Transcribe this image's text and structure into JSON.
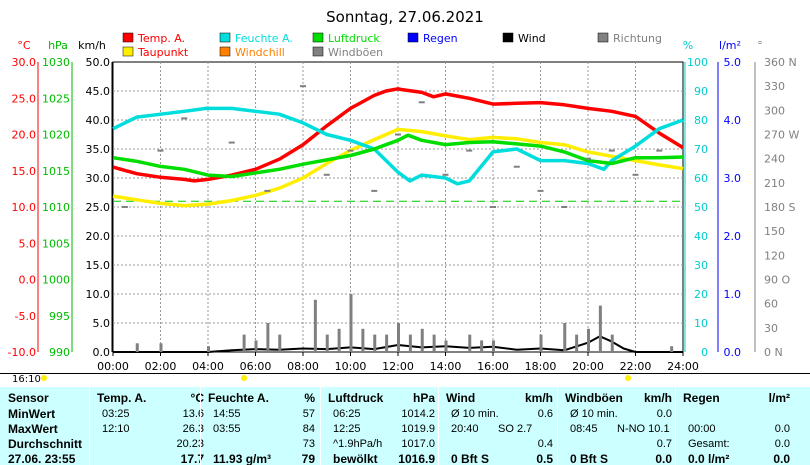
{
  "title": "Sonntag, 27.06.2021",
  "legend": [
    {
      "label": "Temp. A.",
      "color": "#ff0000"
    },
    {
      "label": "Feuchte A.",
      "color": "#00dddd"
    },
    {
      "label": "Luftdruck",
      "color": "#00dd00"
    },
    {
      "label": "Regen",
      "color": "#0000ff"
    },
    {
      "label": "Wind",
      "color": "#000000"
    },
    {
      "label": "Richtung",
      "color": "#808080"
    },
    {
      "label": "Taupunkt",
      "color": "#ffee00"
    },
    {
      "label": "Windchill",
      "color": "#ff8000"
    },
    {
      "label": "Windböen",
      "color": "#808080"
    }
  ],
  "axes": {
    "temp": {
      "unit": "°C",
      "ticks": [
        "30.0",
        "25.0",
        "20.0",
        "15.0",
        "10.0",
        "5.0",
        "0.0",
        "-5.0",
        "-10.0"
      ]
    },
    "press": {
      "unit": "hPa",
      "ticks": [
        "1030",
        "1025",
        "1020",
        "1015",
        "1010",
        "1005",
        "1000",
        "995",
        "990"
      ]
    },
    "wind": {
      "unit": "km/h",
      "ticks": [
        "50.0",
        "45.0",
        "40.0",
        "35.0",
        "30.0",
        "25.0",
        "20.0",
        "15.0",
        "10.0",
        "5.0",
        "0.0"
      ]
    },
    "hum": {
      "unit": "%",
      "ticks": [
        "100",
        "90",
        "80",
        "70",
        "60",
        "50",
        "40",
        "30",
        "20",
        "10",
        "0"
      ]
    },
    "rain": {
      "unit": "l/m²",
      "ticks": [
        "5.0",
        "4.0",
        "3.0",
        "2.0",
        "1.0",
        "0.0"
      ]
    },
    "dir": {
      "unit": "°",
      "ticks": [
        "360 N",
        "330",
        "300",
        "270 W",
        "240",
        "210",
        "180 S",
        "150",
        "120",
        "90 O",
        "60",
        "30",
        "0 N"
      ]
    },
    "x": [
      "00:00",
      "02:00",
      "04:00",
      "06:00",
      "08:00",
      "10:00",
      "12:00",
      "14:00",
      "16:00",
      "18:00",
      "20:00",
      "22:00",
      "24:00"
    ]
  },
  "sun": {
    "rise": "16:10"
  },
  "chart_data": {
    "type": "line",
    "title": "Sonntag, 27.06.2021",
    "x_unit": "hours",
    "series": [
      {
        "name": "Temp. A.",
        "axis": "temp",
        "color": "#ff0000",
        "x": [
          0,
          1,
          2,
          3,
          3.42,
          4,
          5,
          6,
          7,
          8,
          9,
          10,
          11,
          11.5,
          12,
          12.17,
          13,
          13.5,
          14,
          14.5,
          15,
          16,
          17,
          18,
          19,
          20,
          21,
          22,
          23,
          24
        ],
        "y": [
          15.5,
          14.6,
          14.1,
          13.8,
          13.6,
          13.8,
          14.4,
          15.2,
          16.6,
          18.6,
          21.2,
          23.6,
          25.4,
          26.0,
          26.3,
          26.2,
          25.8,
          25.2,
          25.6,
          25.3,
          25.0,
          24.2,
          24.3,
          24.4,
          24.1,
          23.6,
          23.2,
          22.5,
          20.2,
          18.2
        ]
      },
      {
        "name": "Taupunkt",
        "axis": "temp",
        "color": "#ffee00",
        "x": [
          0,
          1,
          2,
          3,
          4,
          5,
          6,
          7,
          8,
          9,
          10,
          11,
          12,
          13,
          14,
          15,
          16,
          17,
          18,
          19,
          20,
          21,
          22,
          23,
          24
        ],
        "y": [
          11.5,
          11.0,
          10.5,
          10.2,
          10.4,
          10.9,
          11.6,
          12.6,
          14.0,
          16.0,
          17.8,
          19.3,
          20.7,
          20.4,
          19.8,
          19.3,
          19.6,
          19.4,
          18.9,
          18.6,
          17.6,
          17.0,
          16.4,
          15.8,
          15.3
        ]
      },
      {
        "name": "Feuchte A.",
        "axis": "hum",
        "color": "#00dddd",
        "x": [
          0,
          1,
          2,
          3,
          3.92,
          4,
          5,
          6,
          7,
          8,
          9,
          10,
          11,
          11.5,
          12,
          12.5,
          13,
          14,
          14.5,
          15,
          16,
          17,
          18,
          19,
          20,
          20.67,
          21,
          22,
          23,
          24
        ],
        "y": [
          77,
          81,
          82,
          83,
          84,
          84,
          84,
          83,
          82,
          79,
          75,
          73,
          70,
          66,
          62,
          59,
          61,
          60,
          58,
          59,
          69,
          70,
          66,
          66,
          65,
          63,
          66,
          71,
          77,
          80
        ]
      },
      {
        "name": "Luftdruck",
        "axis": "press",
        "color": "#00dd00",
        "x": [
          0,
          1,
          2,
          3,
          4,
          5,
          6,
          7,
          8,
          9,
          10,
          11,
          12,
          12.42,
          13,
          14,
          15,
          16,
          17,
          18,
          19,
          20,
          21,
          22,
          23,
          24
        ],
        "y": [
          1016.8,
          1016.3,
          1015.6,
          1015.2,
          1014.4,
          1014.2,
          1014.7,
          1015.2,
          1015.9,
          1016.5,
          1017.1,
          1018.0,
          1019.2,
          1019.9,
          1019.2,
          1018.6,
          1018.9,
          1019.0,
          1018.7,
          1018.4,
          1017.6,
          1016.4,
          1016.0,
          1016.8,
          1016.8,
          1016.9
        ]
      },
      {
        "name": "Wind",
        "axis": "wind",
        "color": "#000000",
        "x": [
          0,
          1,
          2,
          3,
          4,
          5,
          6,
          7,
          8,
          9,
          10,
          11,
          12,
          13,
          14,
          15,
          16,
          17,
          18,
          19,
          20,
          20.5,
          21,
          21.5,
          22,
          23,
          24
        ],
        "y": [
          0,
          0,
          0,
          0,
          0,
          0.3,
          0.5,
          0.4,
          0.6,
          0.5,
          0.8,
          0.5,
          1.2,
          0.8,
          1.0,
          0.7,
          0.9,
          0.4,
          0.6,
          0.3,
          1.6,
          2.7,
          1.8,
          0.6,
          0,
          0,
          0
        ]
      },
      {
        "name": "Windböen",
        "axis": "wind",
        "color": "#808080",
        "x": [
          1,
          2,
          4,
          5.5,
          6,
          6.5,
          7,
          8.5,
          9,
          9.5,
          10,
          10.5,
          11,
          11.5,
          12,
          12.5,
          13,
          13.5,
          14,
          15,
          15.5,
          16,
          18,
          19,
          19.5,
          20,
          20.5,
          21,
          23.5
        ],
        "y": [
          1.5,
          1.5,
          1,
          3,
          2,
          5,
          3,
          9,
          3,
          4,
          10,
          4,
          3,
          3,
          5,
          3,
          4,
          3,
          2,
          3,
          2,
          2,
          3,
          5,
          3,
          4,
          8,
          3,
          1
        ]
      },
      {
        "name": "Richtung",
        "axis": "dir",
        "color": "#808080",
        "x": [
          0.5,
          2,
          3,
          5,
          6.5,
          8,
          9,
          10,
          11,
          12,
          13,
          14,
          15,
          16,
          17,
          18,
          19,
          20,
          21,
          22,
          23
        ],
        "y": [
          180,
          250,
          290,
          260,
          200,
          330,
          220,
          250,
          200,
          270,
          310,
          220,
          250,
          180,
          230,
          200,
          180,
          240,
          250,
          220,
          250
        ]
      }
    ],
    "reference_lines": [
      {
        "axis": "temp",
        "y": 10.8,
        "style": "dashed",
        "color": "#00cc00"
      }
    ]
  },
  "table": {
    "rows": [
      "Sensor",
      "MinWert",
      "MaxWert",
      "Durchschnitt",
      "27.06. 23:55"
    ],
    "cols": [
      {
        "title": "Temp. A.",
        "unit": "°C",
        "time": [
          "03:25",
          "12:10",
          "",
          ""
        ],
        "val": [
          "13.6",
          "26.3",
          "20.23",
          "17.7"
        ]
      },
      {
        "title": "Feuchte A.",
        "unit": "%",
        "time": [
          "14:55",
          "03:55",
          "",
          "11.93 g/m³"
        ],
        "val": [
          "57",
          "84",
          "73",
          "79"
        ]
      },
      {
        "title": "Luftdruck",
        "unit": "hPa",
        "time": [
          "06:25",
          "12:25",
          "^1.9hPa/h",
          "bewölkt"
        ],
        "val": [
          "1014.2",
          "1019.9",
          "1017.0",
          "1016.9"
        ]
      },
      {
        "title": "Wind",
        "unit": "km/h",
        "time": [
          "Ø 10 min.",
          "20:40",
          "",
          "0 Bft S"
        ],
        "mid": [
          "",
          "SO 2.7",
          "",
          ""
        ],
        "val": [
          "0.6",
          "",
          "0.4",
          "0.5"
        ]
      },
      {
        "title": "Windböen",
        "unit": "km/h",
        "time": [
          "Ø 10 min.",
          "08:45",
          "",
          "0 Bft S"
        ],
        "mid": [
          "",
          "N-NO 10.1",
          "",
          ""
        ],
        "val": [
          "0.0",
          "",
          "0.7",
          "0.0"
        ]
      },
      {
        "title": "Regen",
        "unit": "l/m²",
        "time": [
          "",
          "00:00",
          "Gesamt:",
          "0.0 l/m²"
        ],
        "val": [
          "",
          "0.0",
          "0.0",
          "0.0"
        ]
      }
    ]
  }
}
